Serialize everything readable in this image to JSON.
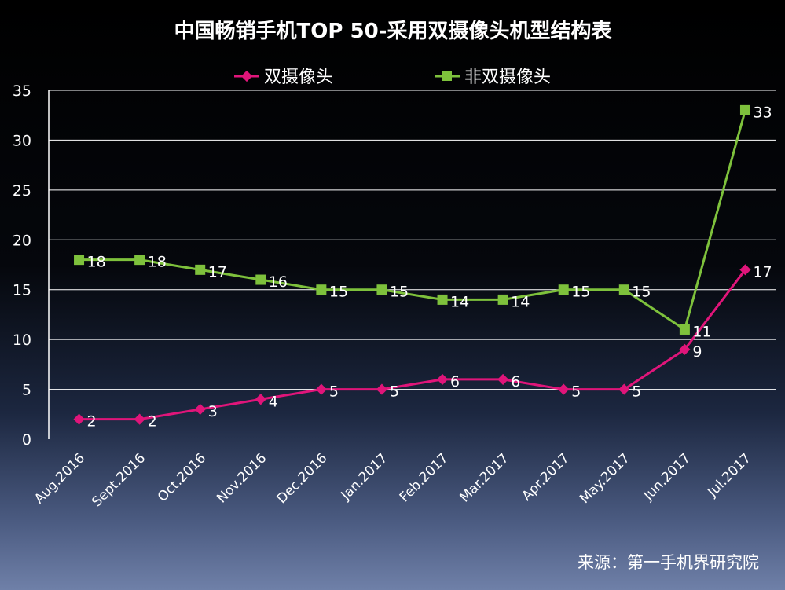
{
  "chart_data": {
    "type": "line",
    "title": "中国畅销手机TOP 50-采用双摄像头机型结构表",
    "categories": [
      "Aug.2016",
      "Sept.2016",
      "Oct.2016",
      "Nov.2016",
      "Dec.2016",
      "Jan.2017",
      "Feb.2017",
      "Mar.2017",
      "Apr.2017",
      "May.2017",
      "Jun.2017",
      "Jul.2017"
    ],
    "series": [
      {
        "name": "双摄像头",
        "color": "#e0157a",
        "marker": "diamond",
        "values": [
          2,
          2,
          3,
          4,
          5,
          5,
          6,
          6,
          5,
          5,
          9,
          17
        ]
      },
      {
        "name": "非双摄像头",
        "color": "#7ec13c",
        "marker": "square",
        "values": [
          18,
          18,
          17,
          16,
          15,
          15,
          14,
          14,
          15,
          15,
          11,
          33
        ]
      }
    ],
    "yticks": [
      "0",
      "5",
      "10",
      "15",
      "20",
      "25",
      "30",
      "35"
    ],
    "ylim": [
      0,
      35
    ],
    "grid": true,
    "legend_position": "top"
  },
  "source": "来源：第一手机界研究院"
}
